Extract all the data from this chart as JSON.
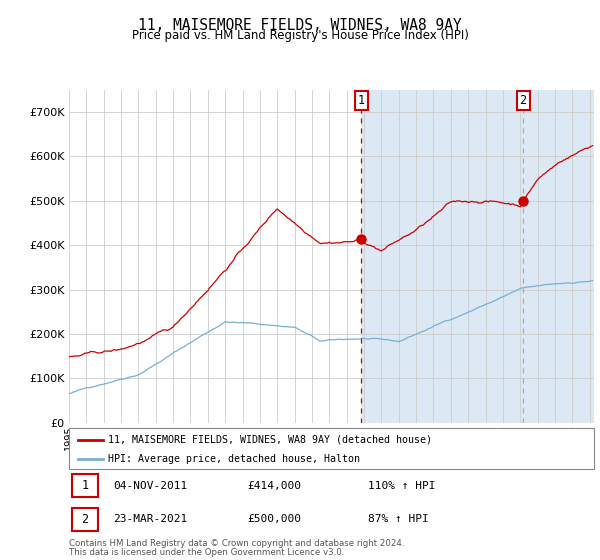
{
  "title": "11, MAISEMORE FIELDS, WIDNES, WA8 9AY",
  "subtitle": "Price paid vs. HM Land Registry's House Price Index (HPI)",
  "legend_line1": "11, MAISEMORE FIELDS, WIDNES, WA8 9AY (detached house)",
  "legend_line2": "HPI: Average price, detached house, Halton",
  "transaction1_date": "04-NOV-2011",
  "transaction1_price": 414000,
  "transaction1_hpi": "110% ↑ HPI",
  "transaction2_date": "23-MAR-2021",
  "transaction2_price": 500000,
  "transaction2_hpi": "87% ↑ HPI",
  "footer_line1": "Contains HM Land Registry data © Crown copyright and database right 2024.",
  "footer_line2": "This data is licensed under the Open Government Licence v3.0.",
  "red_color": "#cc0000",
  "blue_color": "#7aaed4",
  "bg_color": "#dce9f5",
  "grid_color": "#cccccc",
  "white_color": "#ffffff",
  "label_box_edge": "#cc0000",
  "dashed_line_color": "#cc0000",
  "dashed_line2_color": "#aaaaaa",
  "ylim": [
    0,
    750000
  ],
  "yticks": [
    0,
    100000,
    200000,
    300000,
    400000,
    500000,
    600000,
    700000
  ],
  "t1_year": 2011.833,
  "t2_year": 2021.167,
  "t1_price": 414000,
  "t2_price": 500000,
  "xstart": 1995.0,
  "xend": 2025.25
}
